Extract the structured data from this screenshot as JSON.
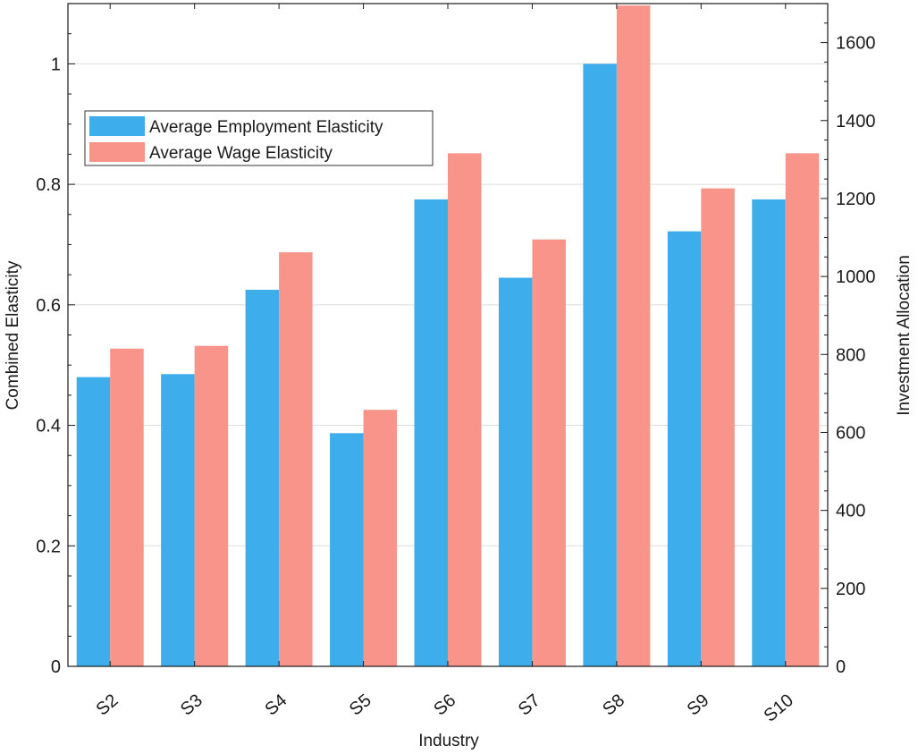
{
  "chart_data": {
    "type": "bar",
    "categories": [
      "S2",
      "S3",
      "S4",
      "S5",
      "S6",
      "S7",
      "S8",
      "S9",
      "S10"
    ],
    "series": [
      {
        "name": "Average Employment Elasticity",
        "axis": "left",
        "color": "#3daeeb",
        "values": [
          0.48,
          0.485,
          0.625,
          0.387,
          0.775,
          0.645,
          1.0,
          0.722,
          0.775
        ]
      },
      {
        "name": "Average Wage Elasticity",
        "axis": "right",
        "color": "#f8948a",
        "values": [
          815,
          822,
          1062,
          658,
          1316,
          1095,
          1695,
          1226,
          1316
        ]
      }
    ],
    "xlabel": "Industry",
    "ylabel": "Combined Elasticity",
    "y2label": "Investment Allocation",
    "ylim": [
      0,
      1.1
    ],
    "y2lim": [
      0,
      1700
    ],
    "yticks": [
      "0",
      "0.2",
      "0.4",
      "0.6",
      "0.8",
      "1"
    ],
    "y2ticks": [
      "0",
      "200",
      "400",
      "600",
      "800",
      "1000",
      "1200",
      "1400",
      "1600"
    ],
    "grid": "horizontal",
    "legend_position": "upper-left"
  }
}
